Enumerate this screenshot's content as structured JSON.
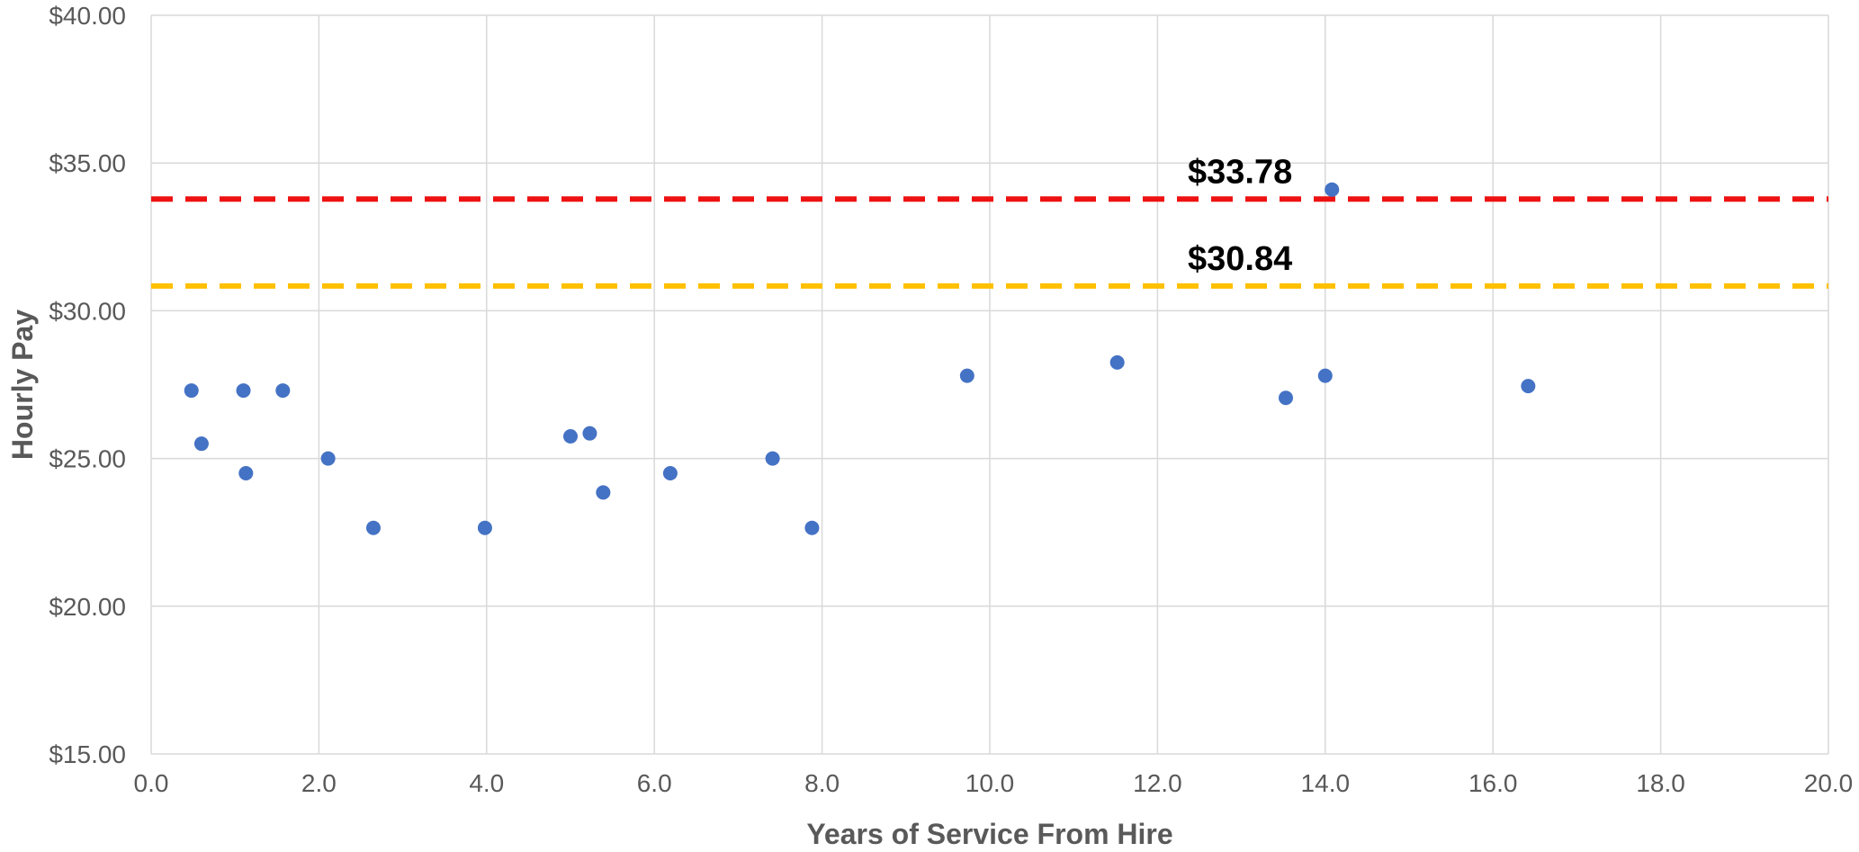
{
  "chart_data": {
    "type": "scatter",
    "xlabel": "Years of Service From Hire",
    "ylabel": "Hourly Pay",
    "xlim": [
      0,
      20
    ],
    "ylim": [
      15,
      40
    ],
    "x_ticks": [
      0,
      2,
      4,
      6,
      8,
      10,
      12,
      14,
      16,
      18,
      20
    ],
    "x_tick_labels": [
      "0.0",
      "2.0",
      "4.0",
      "6.0",
      "8.0",
      "10.0",
      "12.0",
      "14.0",
      "16.0",
      "18.0",
      "20.0"
    ],
    "y_ticks": [
      15,
      20,
      25,
      30,
      35,
      40
    ],
    "y_tick_labels": [
      "$15.00",
      "$20.00",
      "$25.00",
      "$30.00",
      "$35.00",
      "$40.00"
    ],
    "grid": true,
    "point_color": "#4472C4",
    "points": [
      {
        "x": 0.48,
        "y": 27.3
      },
      {
        "x": 0.6,
        "y": 25.5
      },
      {
        "x": 1.1,
        "y": 27.3
      },
      {
        "x": 1.13,
        "y": 24.5
      },
      {
        "x": 1.57,
        "y": 27.3
      },
      {
        "x": 2.11,
        "y": 25.0
      },
      {
        "x": 2.65,
        "y": 22.65
      },
      {
        "x": 3.98,
        "y": 22.65
      },
      {
        "x": 5.0,
        "y": 25.75
      },
      {
        "x": 5.23,
        "y": 25.85
      },
      {
        "x": 5.39,
        "y": 23.85
      },
      {
        "x": 6.19,
        "y": 24.5
      },
      {
        "x": 7.41,
        "y": 25.0
      },
      {
        "x": 7.88,
        "y": 22.65
      },
      {
        "x": 9.73,
        "y": 27.8
      },
      {
        "x": 11.52,
        "y": 28.25
      },
      {
        "x": 13.53,
        "y": 27.05
      },
      {
        "x": 14.0,
        "y": 27.8
      },
      {
        "x": 14.08,
        "y": 34.1
      },
      {
        "x": 16.42,
        "y": 27.45
      }
    ],
    "reference_lines": [
      {
        "value": 33.78,
        "label": "$33.78",
        "color": "#EE1111"
      },
      {
        "value": 30.84,
        "label": "$30.84",
        "color": "#FFC000"
      }
    ]
  }
}
